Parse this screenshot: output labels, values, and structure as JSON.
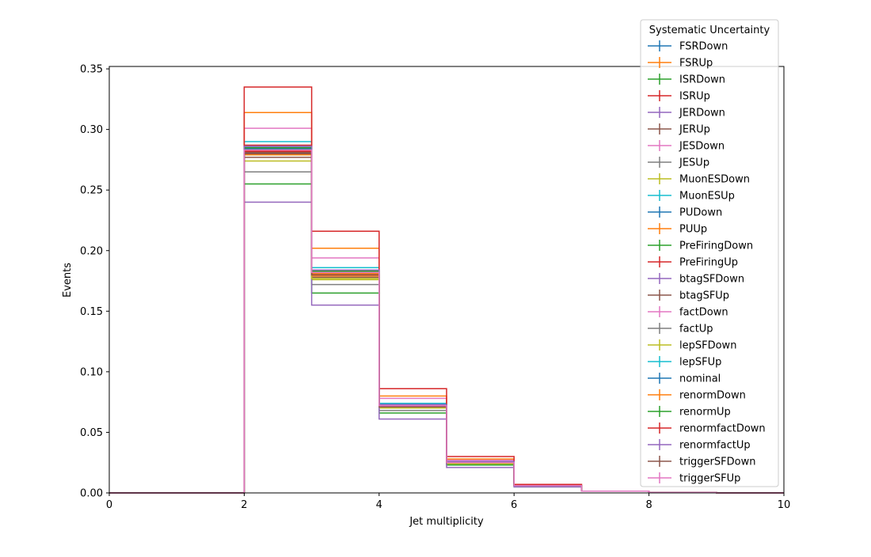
{
  "chart_data": {
    "type": "histogram-step",
    "xlabel": "Jet multiplicity",
    "ylabel": "Events",
    "xlim": [
      0,
      10
    ],
    "ylim": [
      0,
      0.352
    ],
    "xticks": [
      "0",
      "2",
      "4",
      "6",
      "8",
      "10"
    ],
    "yticks": [
      "0.00",
      "0.05",
      "0.10",
      "0.15",
      "0.20",
      "0.25",
      "0.30",
      "0.35"
    ],
    "grid": false,
    "bin_edges": [
      0,
      1,
      2,
      3,
      4,
      5,
      6,
      7,
      8,
      9,
      10
    ],
    "legend": {
      "title": "Systematic Uncertainty",
      "placement": "upper-right-outside"
    },
    "series": [
      {
        "name": "FSRDown",
        "color": "#1f77b4",
        "values": [
          0,
          0,
          0.284,
          0.181,
          0.072,
          0.025,
          0.006,
          0.0015,
          0.0003,
          0
        ]
      },
      {
        "name": "FSRUp",
        "color": "#ff7f0e",
        "values": [
          0,
          0,
          0.279,
          0.179,
          0.071,
          0.025,
          0.006,
          0.0015,
          0.0003,
          0
        ]
      },
      {
        "name": "ISRDown",
        "color": "#2ca02c",
        "values": [
          0,
          0,
          0.283,
          0.182,
          0.072,
          0.025,
          0.006,
          0.0015,
          0.0003,
          0
        ]
      },
      {
        "name": "ISRUp",
        "color": "#d62728",
        "values": [
          0,
          0,
          0.287,
          0.184,
          0.073,
          0.026,
          0.006,
          0.0015,
          0.0003,
          0
        ]
      },
      {
        "name": "JERDown",
        "color": "#9467bd",
        "values": [
          0,
          0,
          0.285,
          0.183,
          0.073,
          0.025,
          0.006,
          0.0015,
          0.0003,
          0
        ]
      },
      {
        "name": "JERUp",
        "color": "#8c564b",
        "values": [
          0,
          0,
          0.281,
          0.18,
          0.071,
          0.025,
          0.006,
          0.0015,
          0.0003,
          0
        ]
      },
      {
        "name": "JESDown",
        "color": "#e377c2",
        "values": [
          0,
          0,
          0.301,
          0.194,
          0.078,
          0.027,
          0.007,
          0.0015,
          0.0003,
          0
        ]
      },
      {
        "name": "JESUp",
        "color": "#7f7f7f",
        "values": [
          0,
          0,
          0.265,
          0.172,
          0.068,
          0.024,
          0.006,
          0.0015,
          0.0003,
          0
        ]
      },
      {
        "name": "MuonESDown",
        "color": "#bcbd22",
        "values": [
          0,
          0,
          0.274,
          0.176,
          0.07,
          0.024,
          0.006,
          0.0015,
          0.0003,
          0
        ]
      },
      {
        "name": "MuonESUp",
        "color": "#17becf",
        "values": [
          0,
          0,
          0.29,
          0.186,
          0.074,
          0.026,
          0.006,
          0.0015,
          0.0003,
          0
        ]
      },
      {
        "name": "PUDown",
        "color": "#1f77b4",
        "values": [
          0,
          0,
          0.286,
          0.184,
          0.073,
          0.026,
          0.006,
          0.0015,
          0.0003,
          0
        ]
      },
      {
        "name": "PUUp",
        "color": "#ff7f0e",
        "values": [
          0,
          0,
          0.314,
          0.202,
          0.08,
          0.028,
          0.007,
          0.0015,
          0.0003,
          0
        ]
      },
      {
        "name": "PreFiringDown",
        "color": "#2ca02c",
        "values": [
          0,
          0,
          0.255,
          0.165,
          0.066,
          0.023,
          0.005,
          0.0015,
          0.0003,
          0
        ]
      },
      {
        "name": "PreFiringUp",
        "color": "#d62728",
        "values": [
          0,
          0,
          0.335,
          0.216,
          0.086,
          0.03,
          0.007,
          0.0015,
          0.0003,
          0
        ]
      },
      {
        "name": "btagSFDown",
        "color": "#9467bd",
        "values": [
          0,
          0,
          0.24,
          0.155,
          0.061,
          0.021,
          0.005,
          0.0015,
          0.0003,
          0
        ]
      },
      {
        "name": "btagSFUp",
        "color": "#8c564b",
        "values": [
          0,
          0,
          0.277,
          0.178,
          0.071,
          0.025,
          0.006,
          0.0015,
          0.0003,
          0
        ]
      },
      {
        "name": "factDown",
        "color": "#e377c2",
        "values": [
          0,
          0,
          0.283,
          0.181,
          0.072,
          0.025,
          0.006,
          0.0015,
          0.0003,
          0
        ]
      },
      {
        "name": "factUp",
        "color": "#7f7f7f",
        "values": [
          0,
          0,
          0.285,
          0.183,
          0.073,
          0.025,
          0.006,
          0.0015,
          0.0003,
          0
        ]
      },
      {
        "name": "lepSFDown",
        "color": "#bcbd22",
        "values": [
          0,
          0,
          0.282,
          0.177,
          0.071,
          0.025,
          0.006,
          0.0015,
          0.0003,
          0
        ]
      },
      {
        "name": "lepSFUp",
        "color": "#17becf",
        "values": [
          0,
          0,
          0.284,
          0.182,
          0.072,
          0.025,
          0.006,
          0.0015,
          0.0003,
          0
        ]
      },
      {
        "name": "nominal",
        "color": "#1f77b4",
        "values": [
          0,
          0,
          0.284,
          0.182,
          0.072,
          0.025,
          0.006,
          0.0015,
          0.0003,
          0
        ]
      },
      {
        "name": "renormDown",
        "color": "#ff7f0e",
        "values": [
          0,
          0,
          0.283,
          0.181,
          0.072,
          0.025,
          0.006,
          0.0015,
          0.0003,
          0
        ]
      },
      {
        "name": "renormUp",
        "color": "#2ca02c",
        "values": [
          0,
          0,
          0.285,
          0.183,
          0.073,
          0.025,
          0.006,
          0.0015,
          0.0003,
          0
        ]
      },
      {
        "name": "renormfactDown",
        "color": "#d62728",
        "values": [
          0,
          0,
          0.282,
          0.18,
          0.072,
          0.025,
          0.006,
          0.0015,
          0.0003,
          0
        ]
      },
      {
        "name": "renormfactUp",
        "color": "#9467bd",
        "values": [
          0,
          0,
          0.286,
          0.184,
          0.073,
          0.026,
          0.006,
          0.0015,
          0.0003,
          0
        ]
      },
      {
        "name": "triggerSFDown",
        "color": "#8c564b",
        "values": [
          0,
          0,
          0.28,
          0.18,
          0.071,
          0.025,
          0.006,
          0.0015,
          0.0003,
          0
        ]
      },
      {
        "name": "triggerSFUp",
        "color": "#e377c2",
        "values": [
          0,
          0,
          0.283,
          0.182,
          0.072,
          0.025,
          0.006,
          0.0015,
          0.0003,
          0
        ]
      }
    ]
  }
}
